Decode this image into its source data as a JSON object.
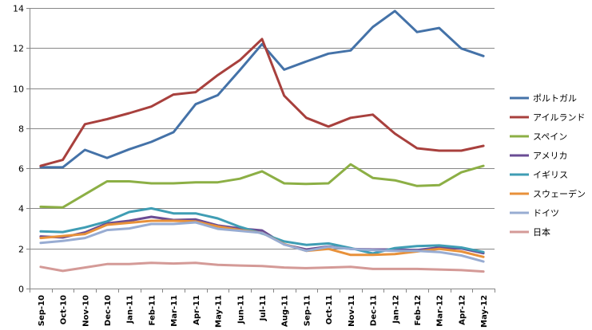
{
  "chart_data": {
    "type": "line",
    "categories": [
      "Sep-10",
      "Oct-10",
      "Nov-10",
      "Dec-10",
      "Jan-11",
      "Feb-11",
      "Mar-11",
      "Apr-11",
      "May-11",
      "Jun-11",
      "Jul-11",
      "Aug-11",
      "Sep-11",
      "Oct-11",
      "Nov-11",
      "Dec-11",
      "Jan-12",
      "Feb-12",
      "Mar-12",
      "Apr-12",
      "May-12"
    ],
    "ylim": [
      0,
      14
    ],
    "yticks": [
      0,
      2,
      4,
      6,
      8,
      10,
      12,
      14
    ],
    "grid": true,
    "legend_position": "right",
    "series": [
      {
        "name": "ポルトガル",
        "color": "#4472A8",
        "values": [
          6.05,
          6.05,
          6.92,
          6.52,
          6.95,
          7.32,
          7.8,
          9.2,
          9.65,
          10.9,
          12.2,
          10.92,
          11.33,
          11.72,
          11.88,
          13.05,
          13.85,
          12.8,
          13.0,
          11.98,
          11.6
        ]
      },
      {
        "name": "アイルランド",
        "color": "#A8403D",
        "values": [
          6.12,
          6.42,
          8.2,
          8.45,
          8.75,
          9.08,
          9.68,
          9.8,
          10.65,
          11.4,
          12.45,
          9.62,
          8.52,
          8.08,
          8.52,
          8.68,
          7.73,
          7.0,
          6.88,
          6.88,
          7.12
        ]
      },
      {
        "name": "スペイン",
        "color": "#8CAF45",
        "values": [
          4.08,
          4.05,
          4.7,
          5.35,
          5.35,
          5.25,
          5.25,
          5.3,
          5.3,
          5.48,
          5.85,
          5.25,
          5.22,
          5.25,
          6.2,
          5.52,
          5.4,
          5.12,
          5.16,
          5.8,
          6.12
        ]
      },
      {
        "name": "アメリカ",
        "color": "#6A4C94",
        "values": [
          2.6,
          2.55,
          2.8,
          3.25,
          3.38,
          3.58,
          3.42,
          3.45,
          3.15,
          3.0,
          2.9,
          2.2,
          1.95,
          2.1,
          1.98,
          1.95,
          1.95,
          1.92,
          2.05,
          2.0,
          1.76
        ]
      },
      {
        "name": "イギリス",
        "color": "#3F9DB4",
        "values": [
          2.85,
          2.82,
          3.05,
          3.35,
          3.82,
          4.0,
          3.75,
          3.75,
          3.5,
          3.08,
          2.75,
          2.35,
          2.18,
          2.25,
          2.02,
          1.75,
          2.02,
          2.12,
          2.15,
          2.05,
          1.82
        ]
      },
      {
        "name": "スウェーデン",
        "color": "#E8913A",
        "values": [
          2.52,
          2.62,
          2.72,
          3.18,
          3.28,
          3.38,
          3.38,
          3.35,
          3.1,
          2.92,
          2.78,
          2.22,
          1.88,
          1.98,
          1.68,
          1.68,
          1.72,
          1.85,
          1.98,
          1.85,
          1.58
        ]
      },
      {
        "name": "ドイツ",
        "color": "#98ACD2",
        "values": [
          2.28,
          2.38,
          2.52,
          2.92,
          3.0,
          3.22,
          3.22,
          3.3,
          2.98,
          2.88,
          2.78,
          2.2,
          1.88,
          2.08,
          1.98,
          1.92,
          1.88,
          1.88,
          1.82,
          1.65,
          1.35
        ]
      },
      {
        "name": "日本",
        "color": "#D49A97",
        "values": [
          1.08,
          0.88,
          1.05,
          1.22,
          1.22,
          1.28,
          1.25,
          1.28,
          1.18,
          1.15,
          1.12,
          1.05,
          1.02,
          1.05,
          1.08,
          0.98,
          0.98,
          0.98,
          0.95,
          0.92,
          0.85
        ]
      }
    ]
  }
}
